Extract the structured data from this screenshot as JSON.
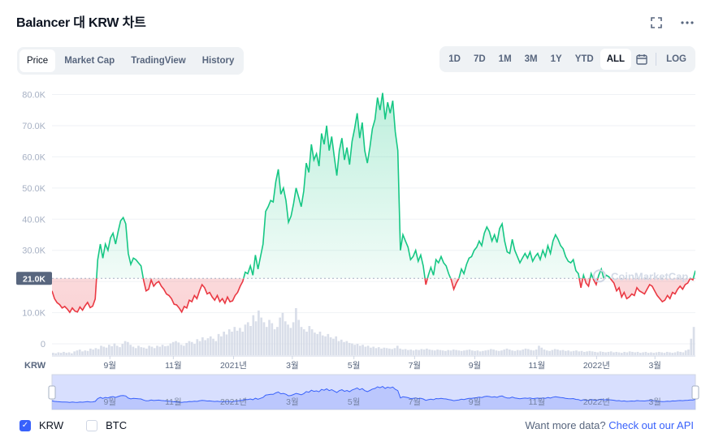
{
  "header": {
    "title": "Balancer 대 KRW 차트",
    "expand_icon": "expand-icon",
    "more_icon": "more-icon"
  },
  "tabs": [
    {
      "label": "Price",
      "active": true
    },
    {
      "label": "Market Cap",
      "active": false
    },
    {
      "label": "TradingView",
      "active": false
    },
    {
      "label": "History",
      "active": false
    }
  ],
  "ranges": [
    {
      "label": "1D",
      "active": false
    },
    {
      "label": "7D",
      "active": false
    },
    {
      "label": "1M",
      "active": false
    },
    {
      "label": "3M",
      "active": false
    },
    {
      "label": "1Y",
      "active": false
    },
    {
      "label": "YTD",
      "active": false
    },
    {
      "label": "ALL",
      "active": true
    }
  ],
  "log_label": "LOG",
  "calendar_icon": "calendar-icon",
  "legend": [
    {
      "label": "KRW",
      "checked": true
    },
    {
      "label": "BTC",
      "checked": false
    }
  ],
  "api": {
    "text": "Want more data?",
    "link": "Check out our API"
  },
  "colors": {
    "up": "#16c784",
    "down": "#ea3943",
    "accent": "#3861fb",
    "volume": "#cfd6e4"
  },
  "chart_data": {
    "type": "area",
    "currency_label": "KRW",
    "watermark": "CoinMarketCap",
    "y_ticks": [
      0,
      10000,
      20000,
      30000,
      40000,
      50000,
      60000,
      70000,
      80000
    ],
    "y_tick_labels": [
      "0",
      "10.0K",
      "20.0K",
      "30.0K",
      "40.0K",
      "50.0K",
      "60.0K",
      "70.0K",
      "80.0K"
    ],
    "ylim": [
      0,
      83000
    ],
    "baseline": 21000,
    "baseline_label": "21.0K",
    "x_ticks": [
      {
        "label": "9월",
        "t": 0.126
      },
      {
        "label": "11월",
        "t": 0.264
      },
      {
        "label": "2021년",
        "t": 0.395
      },
      {
        "label": "3월",
        "t": 0.523
      },
      {
        "label": "5월",
        "t": 0.657
      },
      {
        "label": "7월",
        "t": 0.789
      },
      {
        "label": "9월",
        "t": 0.92
      },
      {
        "label": "11월",
        "t": 1.055
      },
      {
        "label": "2022년",
        "t": 1.185
      },
      {
        "label": "3월",
        "t": 1.312
      }
    ],
    "x_span": 1.4,
    "series": [
      {
        "values": [
          17000,
          14500,
          13200,
          12600,
          11500,
          12000,
          11200,
          10100,
          11500,
          10500,
          10200,
          11800,
          10800,
          12200,
          13300,
          11600,
          12100,
          14400,
          27000,
          32000,
          27500,
          32000,
          30000,
          34000,
          35500,
          32000,
          36000,
          39500,
          40500,
          38500,
          29000,
          25500,
          27500,
          27000,
          26000,
          25000,
          20500,
          17000,
          17500,
          20500,
          18500,
          19500,
          20000,
          18500,
          17500,
          16000,
          15500,
          14500,
          12700,
          12500,
          11500,
          10200,
          12000,
          11500,
          14000,
          13500,
          15500,
          14500,
          17000,
          19000,
          18000,
          16000,
          16500,
          15000,
          14000,
          15500,
          13500,
          14500,
          13000,
          15000,
          13500,
          13800,
          15500,
          16500,
          18500,
          20000,
          23000,
          22500,
          25000,
          22000,
          28500,
          24000,
          28000,
          32000,
          42500,
          44000,
          46000,
          45500,
          52000,
          56000,
          48000,
          50000,
          46000,
          39000,
          41000,
          45000,
          50000,
          47000,
          44000,
          49000,
          58000,
          55000,
          64000,
          59000,
          61000,
          57000,
          67500,
          64000,
          70000,
          62000,
          66500,
          60000,
          54000,
          62000,
          66000,
          59000,
          63000,
          57500,
          65000,
          69000,
          74000,
          66000,
          71000,
          62000,
          58000,
          63000,
          69000,
          72000,
          79000,
          75000,
          80500,
          72000,
          77500,
          74000,
          78000,
          68000,
          62000,
          30000,
          35000,
          33000,
          31000,
          27000,
          28000,
          30000,
          26500,
          28500,
          25000,
          19000,
          22000,
          24500,
          22000,
          27000,
          26000,
          28000,
          26000,
          25000,
          22500,
          20500,
          17500,
          19500,
          21000,
          24000,
          22500,
          25500,
          27500,
          28000,
          30000,
          31000,
          33000,
          31500,
          35500,
          37500,
          36000,
          33000,
          35000,
          32500,
          37000,
          38500,
          33000,
          29500,
          29000,
          33500,
          30000,
          28000,
          26000,
          27500,
          29000,
          27500,
          29500,
          26500,
          28000,
          29000,
          27000,
          30000,
          28000,
          31500,
          29000,
          33000,
          35000,
          33500,
          31500,
          30500,
          28000,
          26500,
          26000,
          27000,
          23500,
          22500,
          18000,
          22000,
          19500,
          18500,
          22500,
          20500,
          19000,
          22000,
          24000,
          21000,
          22000,
          21500,
          20500,
          19500,
          17000,
          18000,
          15000,
          16500,
          14500,
          15000,
          16000,
          15500,
          18000,
          17000,
          16500,
          16000,
          17500,
          19000,
          18500,
          17000,
          15500,
          14500,
          13500,
          14000,
          15500,
          14500,
          16500,
          16000,
          17500,
          18500,
          17500,
          19000,
          19500,
          21000,
          20500,
          23500
        ]
      }
    ],
    "volume": [
      0.05,
      0.04,
      0.06,
      0.05,
      0.07,
      0.05,
      0.06,
      0.04,
      0.08,
      0.1,
      0.12,
      0.08,
      0.1,
      0.09,
      0.14,
      0.12,
      0.15,
      0.13,
      0.2,
      0.18,
      0.16,
      0.22,
      0.19,
      0.25,
      0.2,
      0.17,
      0.24,
      0.3,
      0.28,
      0.22,
      0.18,
      0.15,
      0.2,
      0.17,
      0.16,
      0.14,
      0.2,
      0.18,
      0.15,
      0.2,
      0.18,
      0.22,
      0.19,
      0.2,
      0.25,
      0.28,
      0.3,
      0.27,
      0.22,
      0.2,
      0.26,
      0.3,
      0.28,
      0.24,
      0.34,
      0.3,
      0.38,
      0.32,
      0.36,
      0.4,
      0.35,
      0.3,
      0.45,
      0.4,
      0.5,
      0.44,
      0.55,
      0.5,
      0.6,
      0.52,
      0.58,
      0.5,
      0.65,
      0.7,
      0.62,
      0.85,
      0.72,
      0.95,
      0.8,
      0.7,
      0.6,
      0.75,
      0.68,
      0.55,
      0.6,
      0.8,
      0.9,
      0.72,
      0.65,
      0.58,
      0.7,
      1.0,
      0.75,
      0.6,
      0.55,
      0.5,
      0.62,
      0.55,
      0.48,
      0.45,
      0.5,
      0.42,
      0.4,
      0.45,
      0.38,
      0.35,
      0.4,
      0.3,
      0.33,
      0.28,
      0.3,
      0.26,
      0.25,
      0.22,
      0.24,
      0.2,
      0.22,
      0.18,
      0.2,
      0.16,
      0.18,
      0.15,
      0.17,
      0.14,
      0.16,
      0.15,
      0.14,
      0.13,
      0.15,
      0.2,
      0.14,
      0.12,
      0.13,
      0.11,
      0.12,
      0.1,
      0.12,
      0.11,
      0.13,
      0.12,
      0.14,
      0.12,
      0.11,
      0.1,
      0.12,
      0.11,
      0.1,
      0.09,
      0.11,
      0.1,
      0.12,
      0.11,
      0.1,
      0.09,
      0.1,
      0.11,
      0.12,
      0.1,
      0.09,
      0.1,
      0.08,
      0.09,
      0.1,
      0.11,
      0.13,
      0.12,
      0.1,
      0.09,
      0.1,
      0.12,
      0.14,
      0.12,
      0.1,
      0.09,
      0.11,
      0.1,
      0.12,
      0.14,
      0.13,
      0.11,
      0.1,
      0.12,
      0.2,
      0.16,
      0.12,
      0.1,
      0.09,
      0.11,
      0.13,
      0.12,
      0.1,
      0.11,
      0.09,
      0.1,
      0.08,
      0.09,
      0.1,
      0.08,
      0.09,
      0.07,
      0.08,
      0.09,
      0.08,
      0.07,
      0.06,
      0.08,
      0.07,
      0.06,
      0.07,
      0.08,
      0.06,
      0.07,
      0.06,
      0.05,
      0.07,
      0.06,
      0.08,
      0.07,
      0.06,
      0.07,
      0.05,
      0.06,
      0.07,
      0.05,
      0.06,
      0.05,
      0.06,
      0.07,
      0.06,
      0.05,
      0.07,
      0.06,
      0.05,
      0.06,
      0.08,
      0.07,
      0.06,
      0.1,
      0.12,
      0.35,
      0.6
    ]
  }
}
